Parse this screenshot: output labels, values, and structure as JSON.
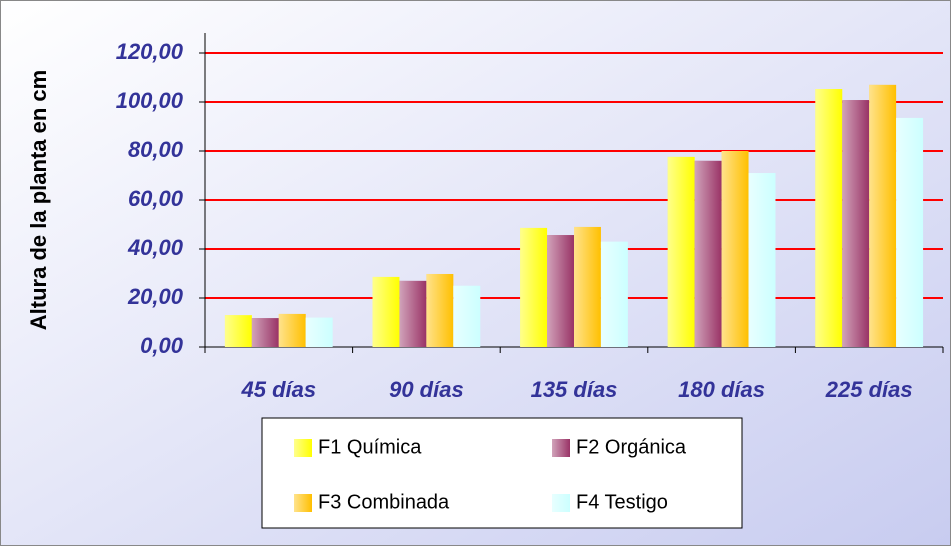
{
  "chart_data": {
    "type": "bar",
    "ylabel": "Altura de la planta en cm",
    "categories": [
      "45 días",
      "90 días",
      "135 días",
      "180 días",
      "225 días"
    ],
    "series": [
      {
        "name": "F1 Química",
        "color": "#ffff00",
        "values": [
          13,
          28.6,
          48.6,
          77.6,
          105.3
        ]
      },
      {
        "name": "F2 Orgánica",
        "color": "#993366",
        "values": [
          11.8,
          27,
          45.7,
          76,
          100.8
        ]
      },
      {
        "name": "F3 Combinada",
        "color": "#ffc000",
        "values": [
          13.5,
          29.8,
          49,
          80,
          107
        ]
      },
      {
        "name": "F4 Testigo",
        "color": "#ccffff",
        "values": [
          12,
          25,
          43,
          71,
          93.5
        ]
      }
    ],
    "ylim": [
      0,
      120
    ],
    "yticks": [
      {
        "value": 0,
        "label": "0,00"
      },
      {
        "value": 20,
        "label": "20,00"
      },
      {
        "value": 40,
        "label": "40,00"
      },
      {
        "value": 60,
        "label": "60,00"
      },
      {
        "value": 80,
        "label": "80,00"
      },
      {
        "value": 100,
        "label": "100,00"
      },
      {
        "value": 120,
        "label": "120,00"
      }
    ],
    "grid": true,
    "grid_color": "#ff0000",
    "legend": "bottom"
  }
}
